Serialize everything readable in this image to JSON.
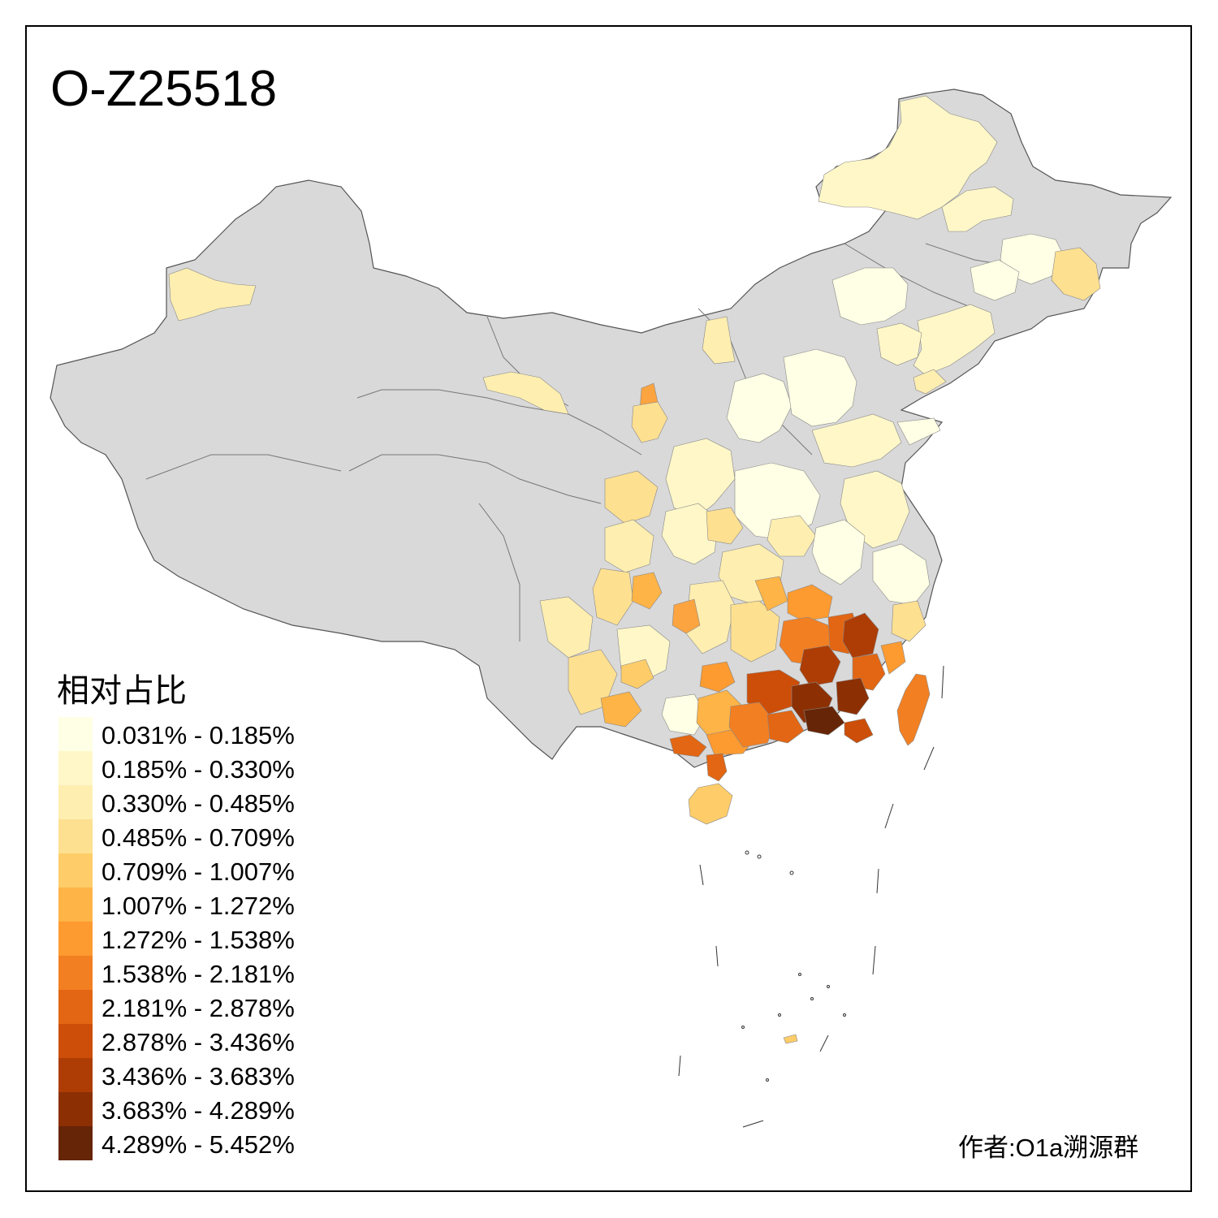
{
  "title": "O-Z25518",
  "legend": {
    "title": "相对占比",
    "items": [
      {
        "label": "0.031% - 0.185%",
        "color": "#FFFFE5"
      },
      {
        "label": "0.185% - 0.330%",
        "color": "#FFF7C8"
      },
      {
        "label": "0.330% - 0.485%",
        "color": "#FEEEB0"
      },
      {
        "label": "0.485% - 0.709%",
        "color": "#FEE091"
      },
      {
        "label": "0.709% - 1.007%",
        "color": "#FECD69"
      },
      {
        "label": "1.007% - 1.272%",
        "color": "#FEB446"
      },
      {
        "label": "1.272% - 1.538%",
        "color": "#FD9A30"
      },
      {
        "label": "1.538% - 2.181%",
        "color": "#F27F22"
      },
      {
        "label": "2.181% - 2.878%",
        "color": "#E26613"
      },
      {
        "label": "2.878% - 3.436%",
        "color": "#CC4E08"
      },
      {
        "label": "3.436% - 3.683%",
        "color": "#AE3D05"
      },
      {
        "label": "3.683% - 4.289%",
        "color": "#8C3004"
      },
      {
        "label": "4.289% - 5.452%",
        "color": "#662506"
      }
    ]
  },
  "credit": "作者:O1a溯源群",
  "colors": {
    "no_data": "#D9D9D9",
    "border": "#555555",
    "background": "#FFFFFF"
  }
}
